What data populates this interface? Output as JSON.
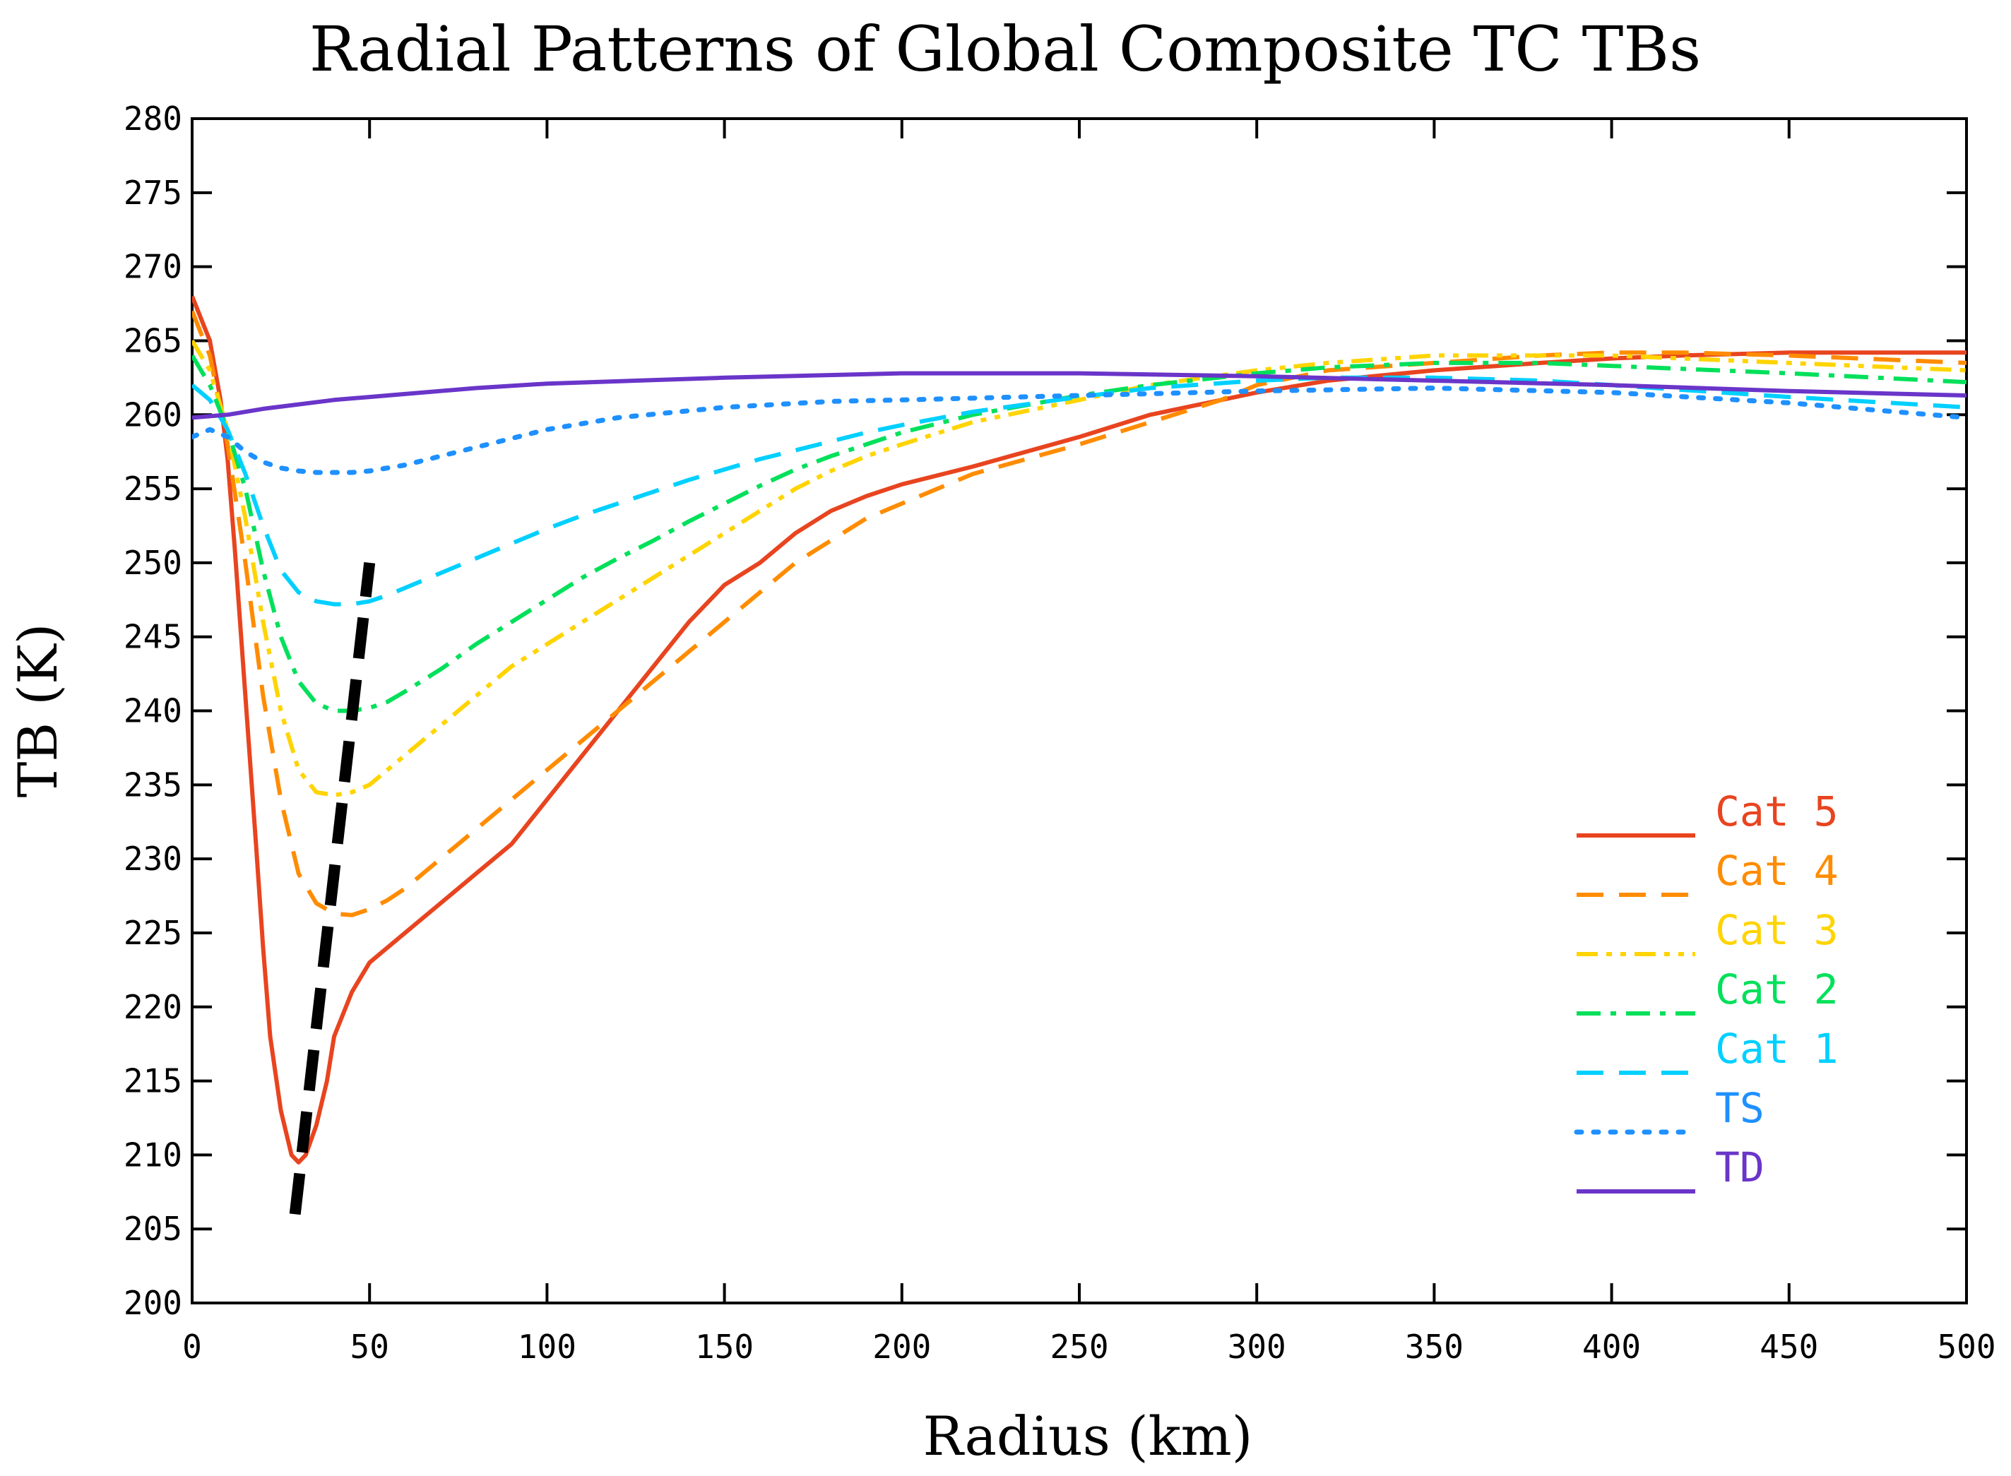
{
  "chart_data": {
    "type": "line",
    "title": "Radial Patterns of  Global Composite TC TBs",
    "xlabel": "Radius (km)",
    "ylabel": "TB (K)",
    "xlim": [
      0,
      500
    ],
    "ylim": [
      200,
      280
    ],
    "xticks": [
      0,
      50,
      100,
      150,
      200,
      250,
      300,
      350,
      400,
      450,
      500
    ],
    "yticks": [
      200,
      205,
      210,
      215,
      220,
      225,
      230,
      235,
      240,
      245,
      250,
      255,
      260,
      265,
      270,
      275,
      280
    ],
    "legend_position": "bottom-right",
    "series": [
      {
        "name": "Cat 5",
        "color": "#e8441f",
        "style": "solid",
        "x": [
          0,
          5,
          8,
          10,
          12,
          15,
          18,
          20,
          22,
          25,
          28,
          30,
          32,
          35,
          38,
          40,
          45,
          50,
          55,
          60,
          70,
          80,
          90,
          100,
          110,
          120,
          130,
          140,
          150,
          160,
          170,
          180,
          190,
          200,
          220,
          250,
          270,
          290,
          300,
          320,
          350,
          380,
          400,
          420,
          450,
          500
        ],
        "y": [
          268,
          265,
          261,
          257,
          251,
          241,
          231,
          224,
          218,
          213,
          210,
          209.5,
          210,
          212,
          215,
          218,
          221,
          223,
          224,
          225,
          227,
          229,
          231,
          234,
          237,
          240,
          243,
          246,
          248.5,
          250,
          252,
          253.5,
          254.5,
          255.3,
          256.5,
          258.5,
          260,
          261,
          261.5,
          262.3,
          263,
          263.5,
          263.8,
          264,
          264.2,
          264.2
        ]
      },
      {
        "name": "Cat 4",
        "color": "#ff8c00",
        "style": "dash",
        "x": [
          0,
          5,
          10,
          15,
          20,
          25,
          30,
          35,
          40,
          45,
          50,
          55,
          60,
          70,
          80,
          90,
          100,
          110,
          120,
          130,
          140,
          150,
          160,
          170,
          180,
          190,
          200,
          220,
          250,
          270,
          290,
          300,
          320,
          350,
          380,
          400,
          420,
          450,
          500
        ],
        "y": [
          267,
          264,
          258,
          250,
          241,
          234,
          229,
          227,
          226.3,
          226.2,
          226.6,
          227.2,
          228,
          230,
          232,
          234,
          236,
          238,
          240,
          242,
          244,
          246,
          248,
          250,
          251.5,
          253,
          254,
          256,
          258,
          259.5,
          261,
          262,
          263,
          263.5,
          264,
          264.2,
          264.2,
          264,
          263.5
        ]
      },
      {
        "name": "Cat 3",
        "color": "#ffd400",
        "style": "dash-dot-dot",
        "x": [
          0,
          5,
          10,
          15,
          20,
          25,
          30,
          35,
          40,
          45,
          50,
          55,
          60,
          70,
          80,
          90,
          100,
          110,
          120,
          130,
          140,
          150,
          160,
          170,
          180,
          190,
          200,
          220,
          250,
          270,
          300,
          320,
          350,
          380,
          400,
          450,
          500
        ],
        "y": [
          265,
          263,
          259,
          253,
          246,
          240,
          236,
          234.5,
          234.3,
          234.5,
          235,
          236,
          237,
          239,
          241,
          243,
          244.5,
          246,
          247.5,
          249,
          250.5,
          252,
          253.5,
          255,
          256.2,
          257.2,
          258,
          259.5,
          261,
          262,
          263,
          263.5,
          264,
          264,
          264,
          263.5,
          263
        ]
      },
      {
        "name": "Cat 2",
        "color": "#00e05a",
        "style": "dash-dot",
        "x": [
          0,
          5,
          10,
          15,
          20,
          25,
          30,
          35,
          40,
          45,
          50,
          55,
          60,
          70,
          80,
          90,
          100,
          110,
          120,
          130,
          140,
          150,
          160,
          170,
          180,
          190,
          200,
          220,
          250,
          270,
          300,
          320,
          350,
          380,
          400,
          450,
          500
        ],
        "y": [
          264,
          262,
          259,
          255,
          249.5,
          245,
          242,
          240.5,
          240,
          240,
          240.2,
          240.6,
          241.3,
          242.8,
          244.5,
          246,
          247.5,
          249,
          250.3,
          251.5,
          252.8,
          254,
          255.2,
          256.3,
          257.2,
          258,
          258.8,
          260,
          261.3,
          262,
          262.8,
          263.2,
          263.5,
          263.5,
          263.3,
          262.8,
          262.2
        ]
      },
      {
        "name": "Cat 1",
        "color": "#00d0ff",
        "style": "dash",
        "x": [
          0,
          5,
          10,
          15,
          20,
          25,
          30,
          35,
          40,
          45,
          50,
          55,
          60,
          70,
          80,
          90,
          100,
          110,
          120,
          130,
          140,
          150,
          160,
          170,
          180,
          190,
          200,
          220,
          250,
          270,
          300,
          320,
          350,
          380,
          400,
          450,
          500
        ],
        "y": [
          262,
          261,
          259,
          256,
          252.5,
          249.5,
          248,
          247.4,
          247.2,
          247.2,
          247.4,
          247.8,
          248.3,
          249.3,
          250.3,
          251.3,
          252.3,
          253.2,
          254,
          254.8,
          255.6,
          256.3,
          257,
          257.6,
          258.2,
          258.8,
          259.3,
          260.2,
          261.2,
          261.8,
          262.3,
          262.5,
          262.5,
          262.3,
          262,
          261.2,
          260.5
        ]
      },
      {
        "name": "TS",
        "color": "#1e90ff",
        "style": "dot",
        "x": [
          0,
          5,
          10,
          15,
          20,
          25,
          30,
          35,
          40,
          45,
          50,
          60,
          70,
          80,
          90,
          100,
          120,
          150,
          180,
          200,
          250,
          300,
          350,
          400,
          450,
          500
        ],
        "y": [
          258.5,
          259,
          258.5,
          257.5,
          256.8,
          256.4,
          256.2,
          256.1,
          256.1,
          256.1,
          256.2,
          256.6,
          257.2,
          257.8,
          258.4,
          259,
          259.8,
          260.5,
          260.9,
          261,
          261.3,
          261.6,
          261.8,
          261.5,
          260.8,
          259.8
        ]
      },
      {
        "name": "TD",
        "color": "#6a35c9",
        "style": "solid",
        "x": [
          0,
          10,
          20,
          30,
          40,
          50,
          60,
          80,
          100,
          150,
          200,
          250,
          300,
          350,
          400,
          450,
          500
        ],
        "y": [
          259.8,
          260,
          260.4,
          260.7,
          261,
          261.2,
          261.4,
          261.8,
          262.1,
          262.5,
          262.8,
          262.8,
          262.6,
          262.3,
          262,
          261.6,
          261.3
        ]
      }
    ],
    "annotation_line": {
      "label": "",
      "color": "#000000",
      "style": "dash",
      "x": [
        29,
        50
      ],
      "y": [
        206,
        250
      ]
    }
  }
}
